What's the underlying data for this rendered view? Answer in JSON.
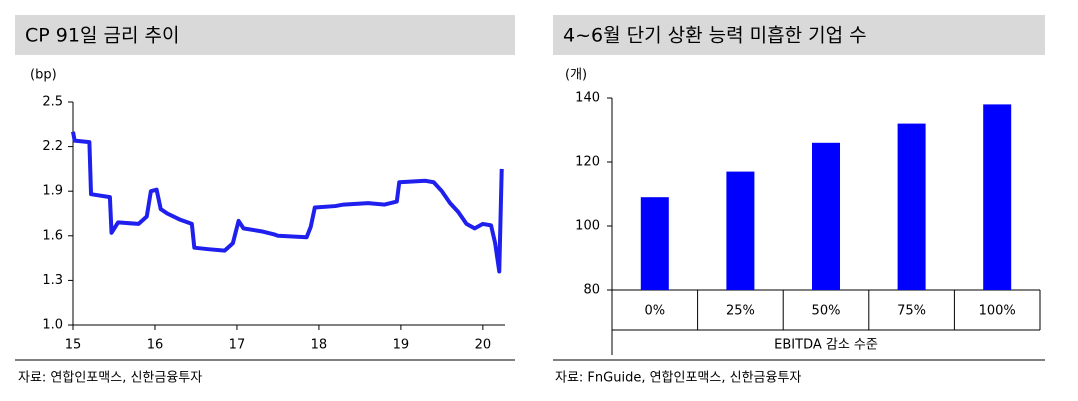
{
  "chart_data": [
    {
      "type": "line",
      "title": "CP 91일 금리 추이",
      "y_unit": "(bp)",
      "source": "자료: 연합인포맥스, 신한금융투자",
      "xlim": [
        15,
        20.27
      ],
      "xticks": [
        15,
        16,
        17,
        18,
        19,
        20
      ],
      "ylim": [
        1.0,
        2.5
      ],
      "yticks": [
        {
          "value": 1.0,
          "label": "1.0"
        },
        1.3,
        1.6,
        1.9,
        2.2,
        2.5
      ],
      "color": "#1f1fee",
      "x": [
        15.0,
        15.02,
        15.2,
        15.22,
        15.45,
        15.47,
        15.55,
        15.8,
        15.9,
        15.95,
        16.02,
        16.07,
        16.15,
        16.3,
        16.45,
        16.48,
        16.65,
        16.85,
        16.95,
        17.02,
        17.08,
        17.3,
        17.45,
        17.5,
        17.85,
        17.9,
        17.95,
        18.2,
        18.3,
        18.6,
        18.8,
        18.95,
        18.98,
        19.3,
        19.4,
        19.5,
        19.6,
        19.7,
        19.8,
        19.9,
        20.0,
        20.1,
        20.15,
        20.2,
        20.23
      ],
      "values": [
        2.3,
        2.24,
        2.23,
        1.88,
        1.86,
        1.62,
        1.69,
        1.68,
        1.73,
        1.9,
        1.91,
        1.78,
        1.75,
        1.71,
        1.68,
        1.52,
        1.51,
        1.5,
        1.55,
        1.7,
        1.65,
        1.63,
        1.61,
        1.6,
        1.59,
        1.66,
        1.79,
        1.8,
        1.81,
        1.82,
        1.81,
        1.83,
        1.96,
        1.97,
        1.96,
        1.9,
        1.82,
        1.76,
        1.68,
        1.65,
        1.68,
        1.67,
        1.55,
        1.36,
        2.05
      ]
    },
    {
      "type": "bar",
      "title": "4~6월 단기 상환 능력 미흡한 기업 수",
      "y_unit": "(개)",
      "source": "자료: FnGuide, 연합인포맥스, 신한금융투자",
      "x_label": "EBITDA 감소 수준",
      "color": "#0000ff",
      "categories": [
        "0%",
        "25%",
        "50%",
        "75%",
        "100%"
      ],
      "values": [
        109,
        117,
        126,
        132,
        138
      ],
      "ylim": [
        80,
        140
      ],
      "yticks": [
        80,
        100,
        120,
        140
      ]
    }
  ]
}
